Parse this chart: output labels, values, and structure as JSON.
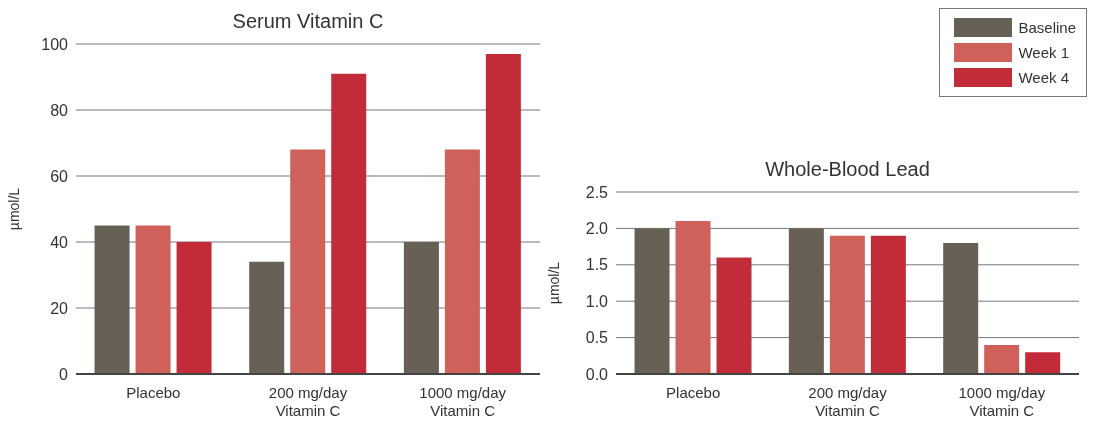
{
  "chart_data": [
    {
      "type": "bar",
      "title": "Serum Vitamin C",
      "ylabel": "µmol/L",
      "categories": [
        "Placebo",
        "200 mg/day\nVitamin C",
        "1000 mg/day\nVitamin C"
      ],
      "series": [
        {
          "color": "#676055",
          "values": [
            45,
            34,
            40
          ]
        },
        {
          "color": "#d0605a",
          "values": [
            45,
            68,
            68
          ]
        },
        {
          "color": "#c22b38",
          "values": [
            40,
            91,
            97
          ]
        }
      ],
      "ylim": [
        0,
        100
      ],
      "yticks": [
        0,
        20,
        40,
        60,
        80,
        100
      ],
      "grid": "y"
    },
    {
      "type": "bar",
      "title": "Whole-Blood Lead",
      "ylabel": "µmol/L",
      "categories": [
        "Placebo",
        "200 mg/day\nVitamin C",
        "1000 mg/day\nVitamin C"
      ],
      "series": [
        {
          "name": "Baseline",
          "color": "#676055",
          "values": [
            2.0,
            2.0,
            1.8
          ]
        },
        {
          "name": "Week 1",
          "color": "#d0605a",
          "values": [
            2.1,
            1.9,
            0.4
          ]
        },
        {
          "name": "Week 4",
          "color": "#c22b38",
          "values": [
            1.6,
            1.9,
            0.3
          ]
        }
      ],
      "ylim": [
        0,
        2.5
      ],
      "yticks": [
        {
          "value": 0,
          "label": "0.0"
        },
        {
          "value": 0.5,
          "label": "0.5"
        },
        {
          "value": 1,
          "label": "1.0"
        },
        {
          "value": 1.5,
          "label": "1.5"
        },
        {
          "value": 2,
          "label": "2.0"
        },
        {
          "value": 2.5,
          "label": "2.5"
        }
      ],
      "grid": "y",
      "legend": "top right"
    }
  ]
}
